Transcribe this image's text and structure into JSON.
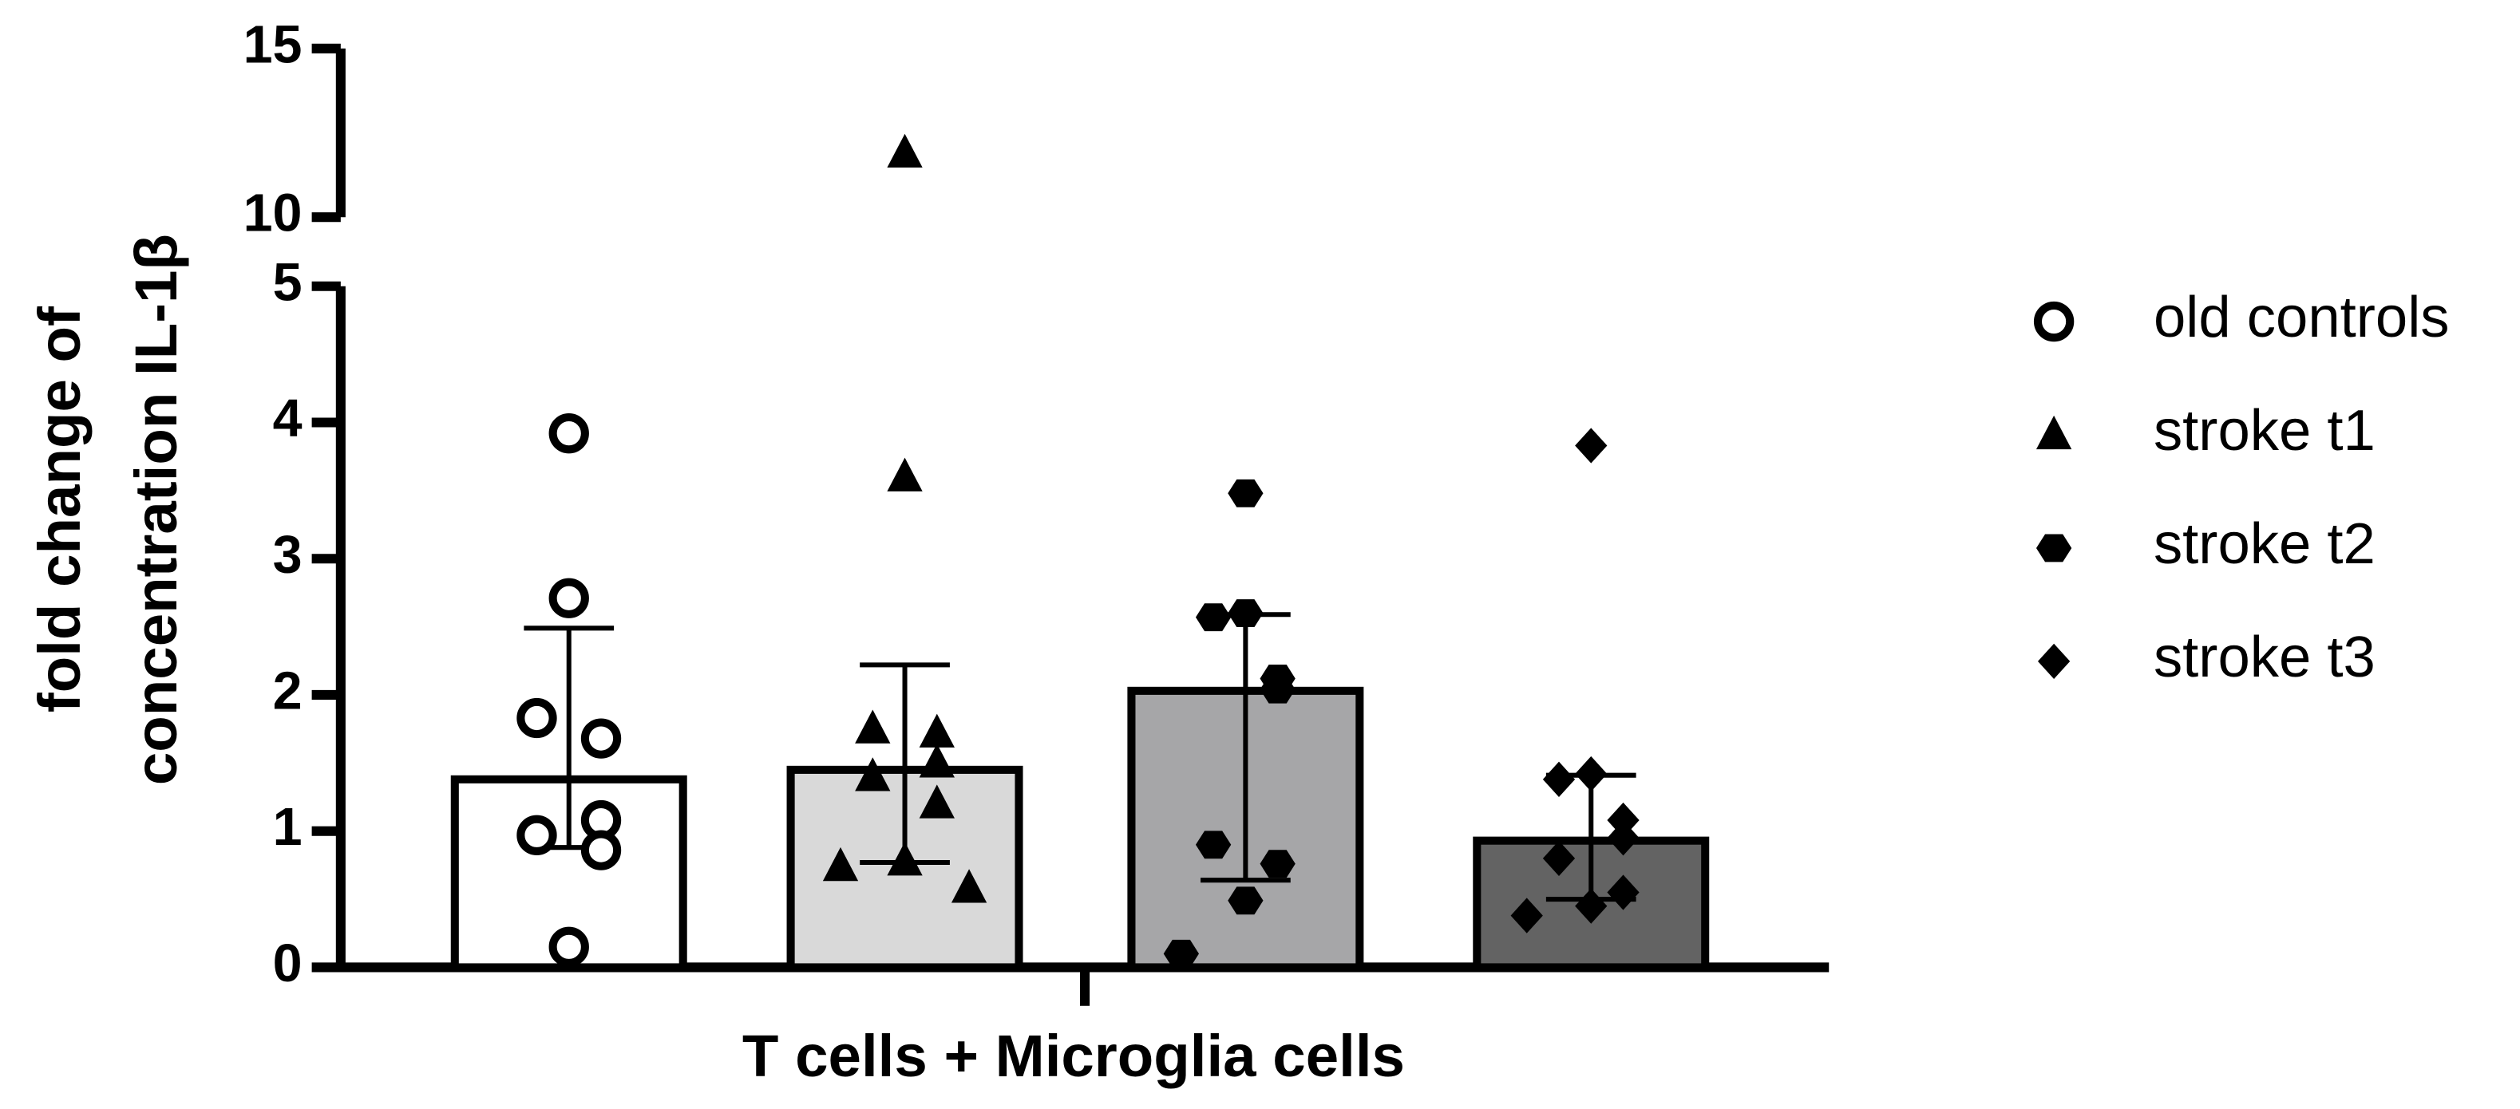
{
  "chart_data": {
    "type": "bar",
    "xlabel": "T cells + Microglia cells",
    "ylabel": [
      "fold change of",
      "concentration IL-1β"
    ],
    "ylim": [
      0,
      15
    ],
    "y_break": [
      5,
      10
    ],
    "yticks": [
      0,
      1,
      2,
      3,
      4,
      5,
      10,
      15
    ],
    "series": [
      {
        "name": "old controls",
        "color": "#ffffff",
        "marker": "circle",
        "values": [
          1.38
        ],
        "error_range": [
          0.88,
          2.49
        ],
        "points": [
          3.92,
          2.71,
          1.83,
          1.68,
          1.08,
          0.97,
          0.86,
          0.15
        ]
      },
      {
        "name": "stroke t1",
        "color": "#d9d9d9",
        "marker": "triangle",
        "values": [
          1.45
        ],
        "error_range": [
          0.77,
          2.22
        ],
        "points": [
          11.9,
          3.6,
          1.75,
          1.72,
          1.5,
          1.4,
          1.2,
          0.78,
          0.74,
          0.58
        ]
      },
      {
        "name": "stroke t2",
        "color": "#a6a6a8",
        "marker": "hexagon",
        "values": [
          2.03
        ],
        "error_range": [
          0.64,
          2.59
        ],
        "points": [
          3.48,
          2.6,
          2.57,
          2.12,
          2.04,
          0.9,
          0.76,
          0.49,
          0.1
        ]
      },
      {
        "name": "stroke t3",
        "color": "#636363",
        "marker": "diamond",
        "values": [
          0.93
        ],
        "error_range": [
          0.5,
          1.41
        ],
        "points": [
          3.83,
          1.42,
          1.38,
          1.08,
          0.95,
          0.8,
          0.55,
          0.45,
          0.38
        ]
      }
    ]
  }
}
